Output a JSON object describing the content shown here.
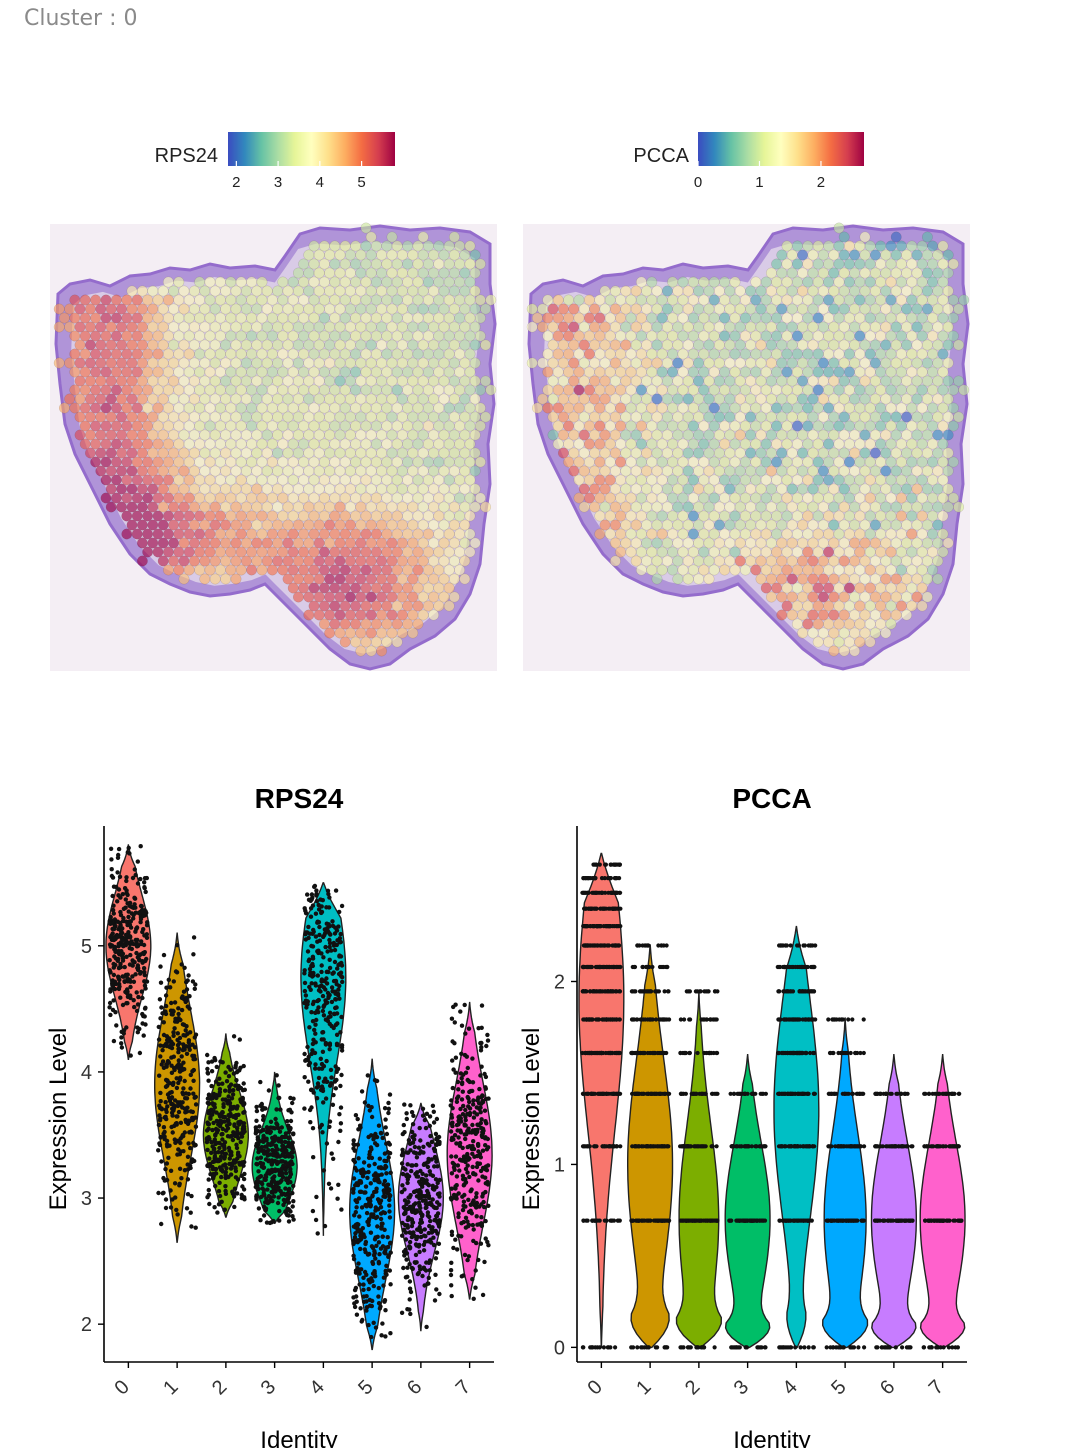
{
  "header": {
    "text": "Cluster : 0"
  },
  "colors": {
    "spectral": [
      "#3b4cc0",
      "#3288bd",
      "#66c2a5",
      "#abdda4",
      "#e6f598",
      "#ffffbf",
      "#fee08b",
      "#fdae61",
      "#f46d43",
      "#d53e4f",
      "#9e0142"
    ],
    "tissue": "#a98bd6",
    "identity": [
      "#f8766d",
      "#cd9600",
      "#7cae00",
      "#00be67",
      "#00bfc4",
      "#00a9ff",
      "#c77cff",
      "#ff61cc"
    ]
  },
  "chart_data": [
    {
      "type": "heatmap",
      "subtype": "spatial-feature-plot",
      "legend_title": "RPS24",
      "legend_ticks": [
        2,
        3,
        4,
        5
      ],
      "legend_range": [
        1.8,
        5.8
      ],
      "legend_placement": "top"
    },
    {
      "type": "heatmap",
      "subtype": "spatial-feature-plot",
      "legend_title": "PCCA",
      "legend_ticks": [
        0,
        1,
        2
      ],
      "legend_range": [
        0,
        2.7
      ],
      "legend_placement": "top"
    },
    {
      "type": "violin",
      "title": "RPS24",
      "xlabel": "Identity",
      "ylabel": "Expression Level",
      "categories": [
        "0",
        "1",
        "2",
        "3",
        "4",
        "5",
        "6",
        "7"
      ],
      "yticks": [
        2,
        3,
        4,
        5
      ],
      "ylim": [
        1.7,
        5.95
      ],
      "series": [
        {
          "category": "0",
          "min": 4.1,
          "max": 5.8,
          "mode": 5.0
        },
        {
          "category": "1",
          "min": 2.65,
          "max": 5.1,
          "mode": 3.9
        },
        {
          "category": "2",
          "min": 2.85,
          "max": 4.3,
          "mode": 3.5
        },
        {
          "category": "3",
          "min": 2.8,
          "max": 4.0,
          "mode": 3.25
        },
        {
          "category": "4",
          "min": 2.7,
          "max": 5.5,
          "mode": 4.75
        },
        {
          "category": "5",
          "min": 1.8,
          "max": 4.1,
          "mode": 2.9
        },
        {
          "category": "6",
          "min": 1.95,
          "max": 3.75,
          "mode": 3.0
        },
        {
          "category": "7",
          "min": 2.2,
          "max": 4.55,
          "mode": 3.35
        }
      ]
    },
    {
      "type": "violin",
      "title": "PCCA",
      "xlabel": "Identity",
      "ylabel": "Expression Level",
      "categories": [
        "0",
        "1",
        "2",
        "3",
        "4",
        "5",
        "6",
        "7"
      ],
      "yticks": [
        0,
        1,
        2
      ],
      "ylim": [
        -0.08,
        2.85
      ],
      "series": [
        {
          "category": "0",
          "min": 0,
          "max": 2.7,
          "mode": 1.9,
          "zero_width": 0.01
        },
        {
          "category": "1",
          "min": 0,
          "max": 2.2,
          "mode": 1.0,
          "zero_width": 0.8
        },
        {
          "category": "2",
          "min": 0,
          "max": 1.95,
          "mode": 0.7,
          "zero_width": 0.95
        },
        {
          "category": "3",
          "min": 0,
          "max": 1.6,
          "mode": 0.7,
          "zero_width": 0.95
        },
        {
          "category": "4",
          "min": 0,
          "max": 2.3,
          "mode": 1.3,
          "zero_width": 0.4
        },
        {
          "category": "5",
          "min": 0,
          "max": 1.8,
          "mode": 0.7,
          "zero_width": 0.95
        },
        {
          "category": "6",
          "min": 0,
          "max": 1.6,
          "mode": 0.7,
          "zero_width": 0.95
        },
        {
          "category": "7",
          "min": 0,
          "max": 1.6,
          "mode": 0.7,
          "zero_width": 0.95
        }
      ]
    }
  ]
}
